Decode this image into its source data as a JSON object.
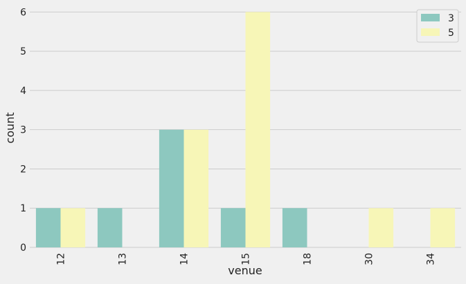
{
  "chart_data": {
    "type": "bar",
    "title": "",
    "xlabel": "venue",
    "ylabel": "count",
    "categories": [
      "12",
      "13",
      "14",
      "15",
      "18",
      "30",
      "34"
    ],
    "series": [
      {
        "name": "3",
        "values": [
          1,
          1,
          3,
          1,
          1,
          0,
          0
        ],
        "color": "#8dc8bf"
      },
      {
        "name": "5",
        "values": [
          1,
          0,
          3,
          6,
          0,
          1,
          1
        ],
        "color": "#f7f6b7"
      }
    ],
    "ylim": [
      0,
      6.2
    ],
    "yticks": [
      "0",
      "1",
      "2",
      "3",
      "4",
      "5",
      "6"
    ],
    "grid": true,
    "legend_position": "top-right",
    "colors": {
      "background": "#f0f0f0",
      "grid": "#cbcbcb",
      "text": "#222222"
    }
  }
}
